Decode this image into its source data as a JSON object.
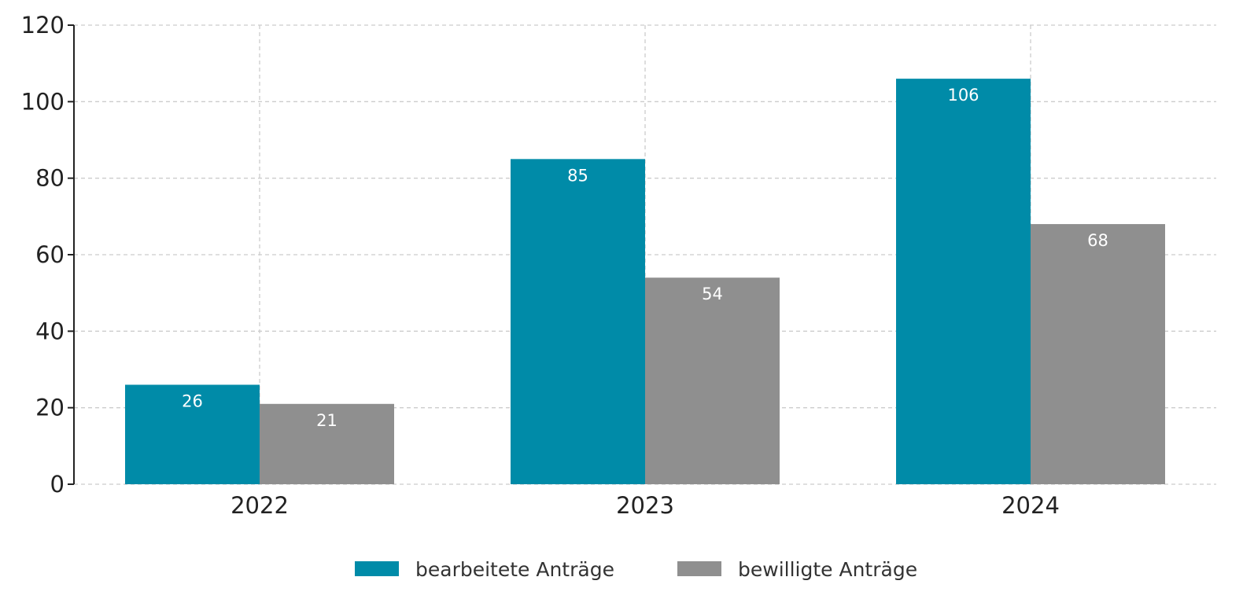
{
  "chart_data": {
    "type": "bar",
    "title": "",
    "xlabel": "",
    "ylabel": "",
    "categories": [
      "2022",
      "2023",
      "2024"
    ],
    "series": [
      {
        "name": "bearbeitete Anträge",
        "values": [
          26,
          85,
          106
        ],
        "color": "#008BA8"
      },
      {
        "name": "bewilligte Anträge",
        "values": [
          21,
          54,
          68
        ],
        "color": "#8F8F8F"
      }
    ],
    "ylim": [
      0,
      120
    ],
    "yticks": [
      0,
      20,
      40,
      60,
      80,
      100,
      120
    ],
    "grid": true,
    "legend_position": "bottom-center",
    "data_labels": true
  }
}
